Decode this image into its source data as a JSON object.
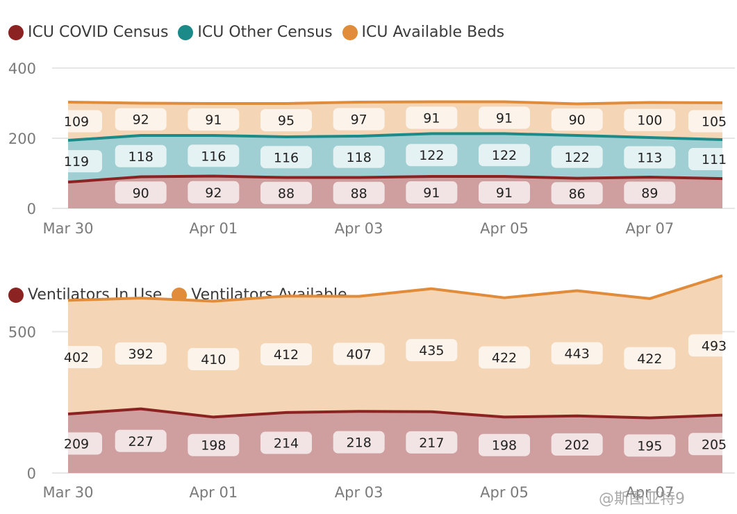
{
  "colors": {
    "covid": "#8b2323",
    "other": "#1c8a88",
    "available": "#e08c3a",
    "vent_in_use": "#8b2323",
    "vent_available": "#e08c3a",
    "grid": "#e6e6e6",
    "axis_text": "#7a7a7a",
    "label_text": "#222222"
  },
  "chart_data": [
    {
      "type": "area",
      "stacked": true,
      "legend": [
        "ICU COVID Census",
        "ICU Other Census",
        "ICU Available Beds"
      ],
      "legend_position": "top-left",
      "x": [
        "Mar 30",
        "Mar 31",
        "Apr 01",
        "Apr 02",
        "Apr 03",
        "Apr 04",
        "Apr 05",
        "Apr 06",
        "Apr 07",
        "Apr 08"
      ],
      "x_tick_labels": [
        "Mar 30",
        "Apr 01",
        "Apr 03",
        "Apr 05",
        "Apr 07"
      ],
      "y_ticks": [
        "0",
        "200",
        "400"
      ],
      "ylim": [
        0,
        400
      ],
      "grid": true,
      "series": [
        {
          "name": "ICU COVID Census",
          "values": [
            75,
            90,
            92,
            88,
            88,
            91,
            91,
            86,
            89,
            85
          ]
        },
        {
          "name": "ICU Other Census",
          "values": [
            119,
            118,
            116,
            116,
            118,
            122,
            122,
            122,
            113,
            111
          ]
        },
        {
          "name": "ICU Available Beds",
          "values": [
            109,
            92,
            91,
            95,
            97,
            91,
            91,
            90,
            100,
            105
          ]
        }
      ],
      "data_labels": [
        [
          "",
          "90",
          "92",
          "88",
          "88",
          "91",
          "91",
          "86",
          "89",
          ""
        ],
        [
          "119",
          "118",
          "116",
          "116",
          "118",
          "122",
          "122",
          "122",
          "113",
          "111"
        ],
        [
          "109",
          "92",
          "91",
          "95",
          "97",
          "91",
          "91",
          "90",
          "100",
          "105"
        ]
      ]
    },
    {
      "type": "area",
      "stacked": true,
      "legend": [
        "Ventilators In Use",
        "Ventilators Available"
      ],
      "legend_position": "top-left",
      "x": [
        "Mar 30",
        "Mar 31",
        "Apr 01",
        "Apr 02",
        "Apr 03",
        "Apr 04",
        "Apr 05",
        "Apr 06",
        "Apr 07",
        "Apr 08"
      ],
      "x_tick_labels": [
        "Mar 30",
        "Apr 01",
        "Apr 03",
        "Apr 05",
        "Apr 07"
      ],
      "y_ticks": [
        "0",
        "500"
      ],
      "ylim": [
        0,
        720
      ],
      "grid": true,
      "series": [
        {
          "name": "Ventilators In Use",
          "values": [
            209,
            227,
            198,
            214,
            218,
            217,
            198,
            202,
            195,
            205
          ]
        },
        {
          "name": "Ventilators Available",
          "values": [
            402,
            392,
            410,
            412,
            407,
            435,
            422,
            443,
            422,
            493
          ]
        }
      ],
      "data_labels": [
        [
          "209",
          "227",
          "198",
          "214",
          "218",
          "217",
          "198",
          "202",
          "195",
          "205"
        ],
        [
          "402",
          "392",
          "410",
          "412",
          "407",
          "435",
          "422",
          "443",
          "422",
          "493"
        ]
      ]
    }
  ],
  "watermark": "@斯图亚特9"
}
